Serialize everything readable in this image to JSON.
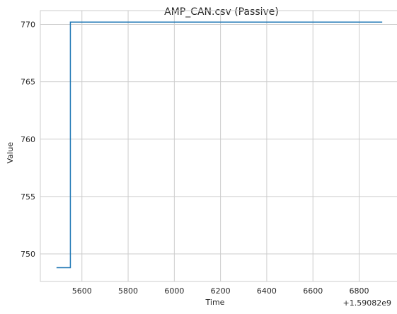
{
  "chart_data": {
    "type": "line",
    "title": "AMP_CAN.csv (Passive)",
    "xlabel": "Time",
    "ylabel": "Value",
    "x_offset_label": "+1.59082e9",
    "xlim": [
      5420,
      6970
    ],
    "ylim": [
      747.6,
      771.2
    ],
    "xticks": [
      5600,
      5800,
      6000,
      6200,
      6400,
      6600,
      6800
    ],
    "yticks": [
      750,
      755,
      760,
      765,
      770
    ],
    "grid": true,
    "series": [
      {
        "color": "#1f77b4",
        "step": "post",
        "x": [
          5490,
          5550,
          6900
        ],
        "y": [
          748.8,
          770.2,
          770.2
        ]
      }
    ]
  }
}
